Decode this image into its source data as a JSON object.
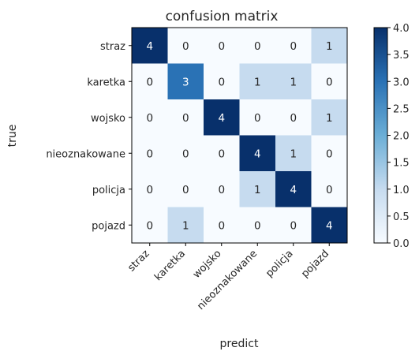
{
  "chart_data": {
    "type": "heatmap",
    "title": "confusion matrix",
    "xlabel": "predict",
    "ylabel": "true",
    "row_labels": [
      "straz",
      "karetka",
      "wojsko",
      "nieoznakowane",
      "policja",
      "pojazd"
    ],
    "col_labels": [
      "straz",
      "karetka",
      "wojsko",
      "nieoznakowane",
      "policja",
      "pojazd"
    ],
    "values": [
      [
        4,
        0,
        0,
        0,
        0,
        1
      ],
      [
        0,
        3,
        0,
        1,
        1,
        0
      ],
      [
        0,
        0,
        4,
        0,
        0,
        1
      ],
      [
        0,
        0,
        0,
        4,
        1,
        0
      ],
      [
        0,
        0,
        0,
        1,
        4,
        0
      ],
      [
        0,
        1,
        0,
        0,
        0,
        4
      ]
    ],
    "colormap": "Blues",
    "color_range": [
      0,
      4
    ],
    "colorbar_ticks": [
      "0.0",
      "0.5",
      "1.0",
      "1.5",
      "2.0",
      "2.5",
      "3.0",
      "3.5",
      "4.0"
    ],
    "colors": {
      "low": "#f7fbff",
      "mid_low": "#c6dbef",
      "mid": "#6baed6",
      "mid_high": "#2a72b5",
      "high": "#08306b"
    }
  }
}
